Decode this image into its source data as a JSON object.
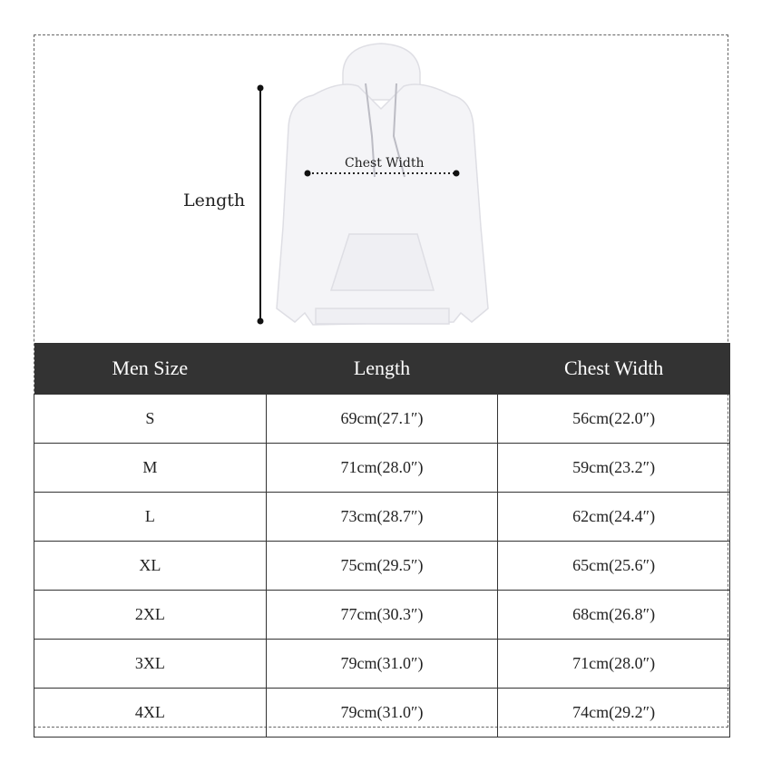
{
  "figure": {
    "length_label": "Length",
    "chest_width_label": "Chest Width",
    "garment_color": "#f4f4f7"
  },
  "table": {
    "header_color": "#333333",
    "columns": [
      "Men Size",
      "Length",
      "Chest Width"
    ],
    "rows": [
      [
        "S",
        "69cm(27.1″)",
        "56cm(22.0″)"
      ],
      [
        "M",
        "71cm(28.0″)",
        "59cm(23.2″)"
      ],
      [
        "L",
        "73cm(28.7″)",
        "62cm(24.4″)"
      ],
      [
        "XL",
        "75cm(29.5″)",
        "65cm(25.6″)"
      ],
      [
        "2XL",
        "77cm(30.3″)",
        "68cm(26.8″)"
      ],
      [
        "3XL",
        "79cm(31.0″)",
        "71cm(28.0″)"
      ],
      [
        "4XL",
        "79cm(31.0″)",
        "74cm(29.2″)"
      ]
    ]
  }
}
